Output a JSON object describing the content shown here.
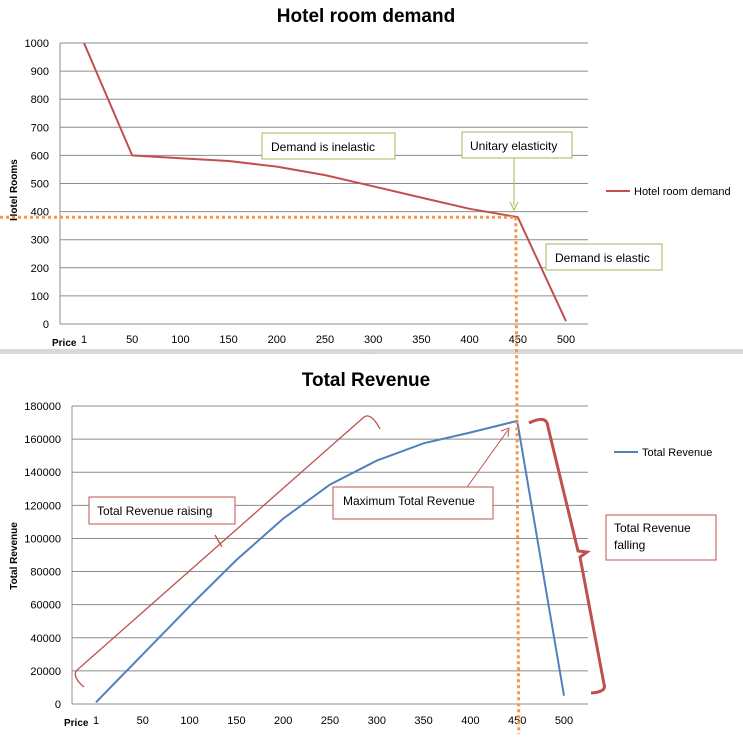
{
  "chart_data": [
    {
      "type": "line",
      "title": "Hotel room demand",
      "xlabel": "Price",
      "ylabel": "Hotel Rooms",
      "categories": [
        "1",
        "50",
        "100",
        "150",
        "200",
        "250",
        "300",
        "350",
        "400",
        "450",
        "500"
      ],
      "ylim": [
        0,
        1000
      ],
      "yticks": [
        0,
        100,
        200,
        300,
        400,
        500,
        600,
        700,
        800,
        900,
        1000
      ],
      "grid": true,
      "legend_position": "right",
      "series": [
        {
          "name": "Hotel room demand",
          "color": "#c0504d",
          "values": [
            1000,
            600,
            590,
            580,
            560,
            530,
            490,
            450,
            410,
            380,
            10
          ]
        }
      ],
      "annotations": [
        {
          "text": "Demand is inelastic",
          "border_color": "#9bbb59"
        },
        {
          "text": "Unitary elasticity",
          "border_color": "#9bbb59"
        },
        {
          "text": "Demand is elastic",
          "border_color": "#9bbb59"
        }
      ]
    },
    {
      "type": "line",
      "title": "Total Revenue",
      "xlabel": "Price",
      "ylabel": "Total Revenue",
      "categories": [
        "1",
        "50",
        "100",
        "150",
        "200",
        "250",
        "300",
        "350",
        "400",
        "450",
        "500"
      ],
      "ylim": [
        0,
        180000
      ],
      "yticks": [
        0,
        20000,
        40000,
        60000,
        80000,
        100000,
        120000,
        140000,
        160000,
        180000
      ],
      "grid": true,
      "legend_position": "right",
      "series": [
        {
          "name": "Total Revenue",
          "color": "#4f81bd",
          "values": [
            1000,
            30000,
            59000,
            87000,
            112000,
            132500,
            147000,
            157500,
            164000,
            171000,
            5000
          ]
        }
      ],
      "annotations": [
        {
          "text": "Total Revenue raising",
          "border_color": "#c0504d"
        },
        {
          "text": "Maximum Total Revenue",
          "border_color": "#c0504d"
        },
        {
          "text": "Total Revenue falling",
          "border_color": "#c0504d"
        }
      ]
    }
  ],
  "colors": {
    "guide_line": "#f79646",
    "annotation_arrow": "#c0504d",
    "divider": "#d9d9d9"
  }
}
